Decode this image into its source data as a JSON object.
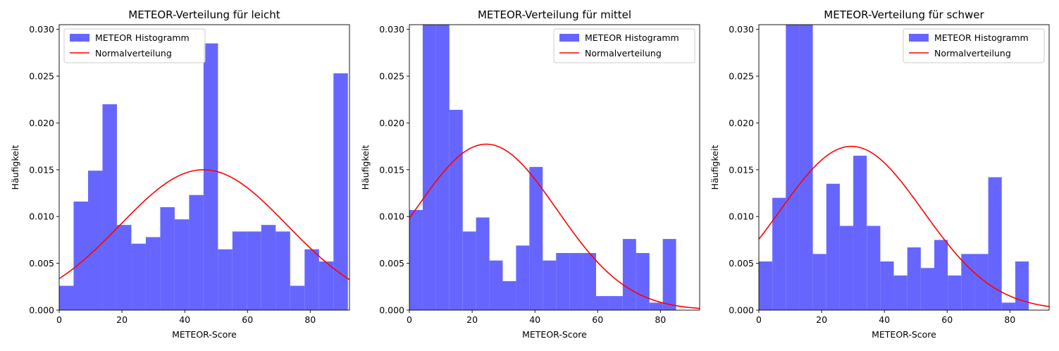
{
  "figure": {
    "bar_color": "#6666ff",
    "curve_color": "#ff0000"
  },
  "chart_data": [
    {
      "type": "bar",
      "title": "METEOR-Verteilung für leicht",
      "xlabel": "METEOR-Score",
      "ylabel": "Häufigkeit",
      "xlim": [
        0,
        92.5
      ],
      "ylim": [
        0,
        0.0305
      ],
      "xticks": [
        "0",
        "20",
        "40",
        "60",
        "80"
      ],
      "yticks": [
        "0.000",
        "0.005",
        "0.010",
        "0.015",
        "0.020",
        "0.025",
        "0.030"
      ],
      "legend_position": "top-left",
      "legend": [
        "METEOR Histogramm",
        "Normalverteilung"
      ],
      "bin_edges": [
        0,
        4.6,
        9.2,
        13.8,
        18.4,
        23.0,
        27.6,
        32.2,
        36.8,
        41.4,
        46.0,
        50.6,
        55.2,
        59.8,
        64.4,
        69.0,
        73.6,
        78.2,
        82.8,
        87.4,
        92.0
      ],
      "values": [
        0.0026,
        0.0116,
        0.0149,
        0.022,
        0.0091,
        0.0071,
        0.0078,
        0.011,
        0.0097,
        0.0123,
        0.0285,
        0.0065,
        0.0084,
        0.0084,
        0.0091,
        0.0084,
        0.0026,
        0.0065,
        0.0052,
        0.0253
      ],
      "normal": {
        "mean": 46.0,
        "std": 26.6
      }
    },
    {
      "type": "bar",
      "title": "METEOR-Verteilung für mittel",
      "xlabel": "METEOR-Score",
      "ylabel": "Häufigkeit",
      "xlim": [
        0,
        92.5
      ],
      "ylim": [
        0,
        0.0305
      ],
      "xticks": [
        "0",
        "20",
        "40",
        "60",
        "80"
      ],
      "yticks": [
        "0.000",
        "0.005",
        "0.010",
        "0.015",
        "0.020",
        "0.025",
        "0.030"
      ],
      "legend_position": "top-right",
      "legend": [
        "METEOR Histogramm",
        "Normalverteilung"
      ],
      "bin_edges": [
        0,
        4.25,
        8.5,
        12.75,
        17.0,
        21.25,
        25.5,
        29.75,
        34.0,
        38.25,
        42.5,
        46.75,
        51.0,
        55.25,
        59.5,
        63.75,
        68.0,
        72.25,
        76.5,
        80.75,
        85.0
      ],
      "values": [
        0.0107,
        0.0345,
        0.0345,
        0.0214,
        0.0084,
        0.0099,
        0.0053,
        0.0031,
        0.0069,
        0.0153,
        0.0053,
        0.0061,
        0.0061,
        0.0061,
        0.0015,
        0.0015,
        0.0076,
        0.0061,
        0.0008,
        0.0076
      ],
      "normal": {
        "mean": 24.5,
        "std": 22.5
      }
    },
    {
      "type": "bar",
      "title": "METEOR-Verteilung für schwer",
      "xlabel": "METEOR-Score",
      "ylabel": "Häufigkeit",
      "xlim": [
        0,
        92.5
      ],
      "ylim": [
        0,
        0.0305
      ],
      "xticks": [
        "0",
        "20",
        "40",
        "60",
        "80"
      ],
      "yticks": [
        "0.000",
        "0.005",
        "0.010",
        "0.015",
        "0.020",
        "0.025",
        "0.030"
      ],
      "legend_position": "top-right",
      "legend": [
        "METEOR Histogramm",
        "Normalverteilung"
      ],
      "bin_edges": [
        0,
        4.3,
        8.6,
        12.9,
        17.2,
        21.5,
        25.8,
        30.1,
        34.4,
        38.7,
        43.0,
        47.3,
        51.6,
        55.9,
        60.2,
        64.5,
        68.8,
        73.1,
        77.4,
        81.7,
        86.0
      ],
      "values": [
        0.0052,
        0.012,
        0.0345,
        0.0345,
        0.006,
        0.0135,
        0.009,
        0.0165,
        0.009,
        0.0052,
        0.0037,
        0.0067,
        0.0045,
        0.0075,
        0.0037,
        0.006,
        0.006,
        0.0142,
        0.0008,
        0.0052
      ],
      "normal": {
        "mean": 29.5,
        "std": 22.8
      }
    }
  ]
}
